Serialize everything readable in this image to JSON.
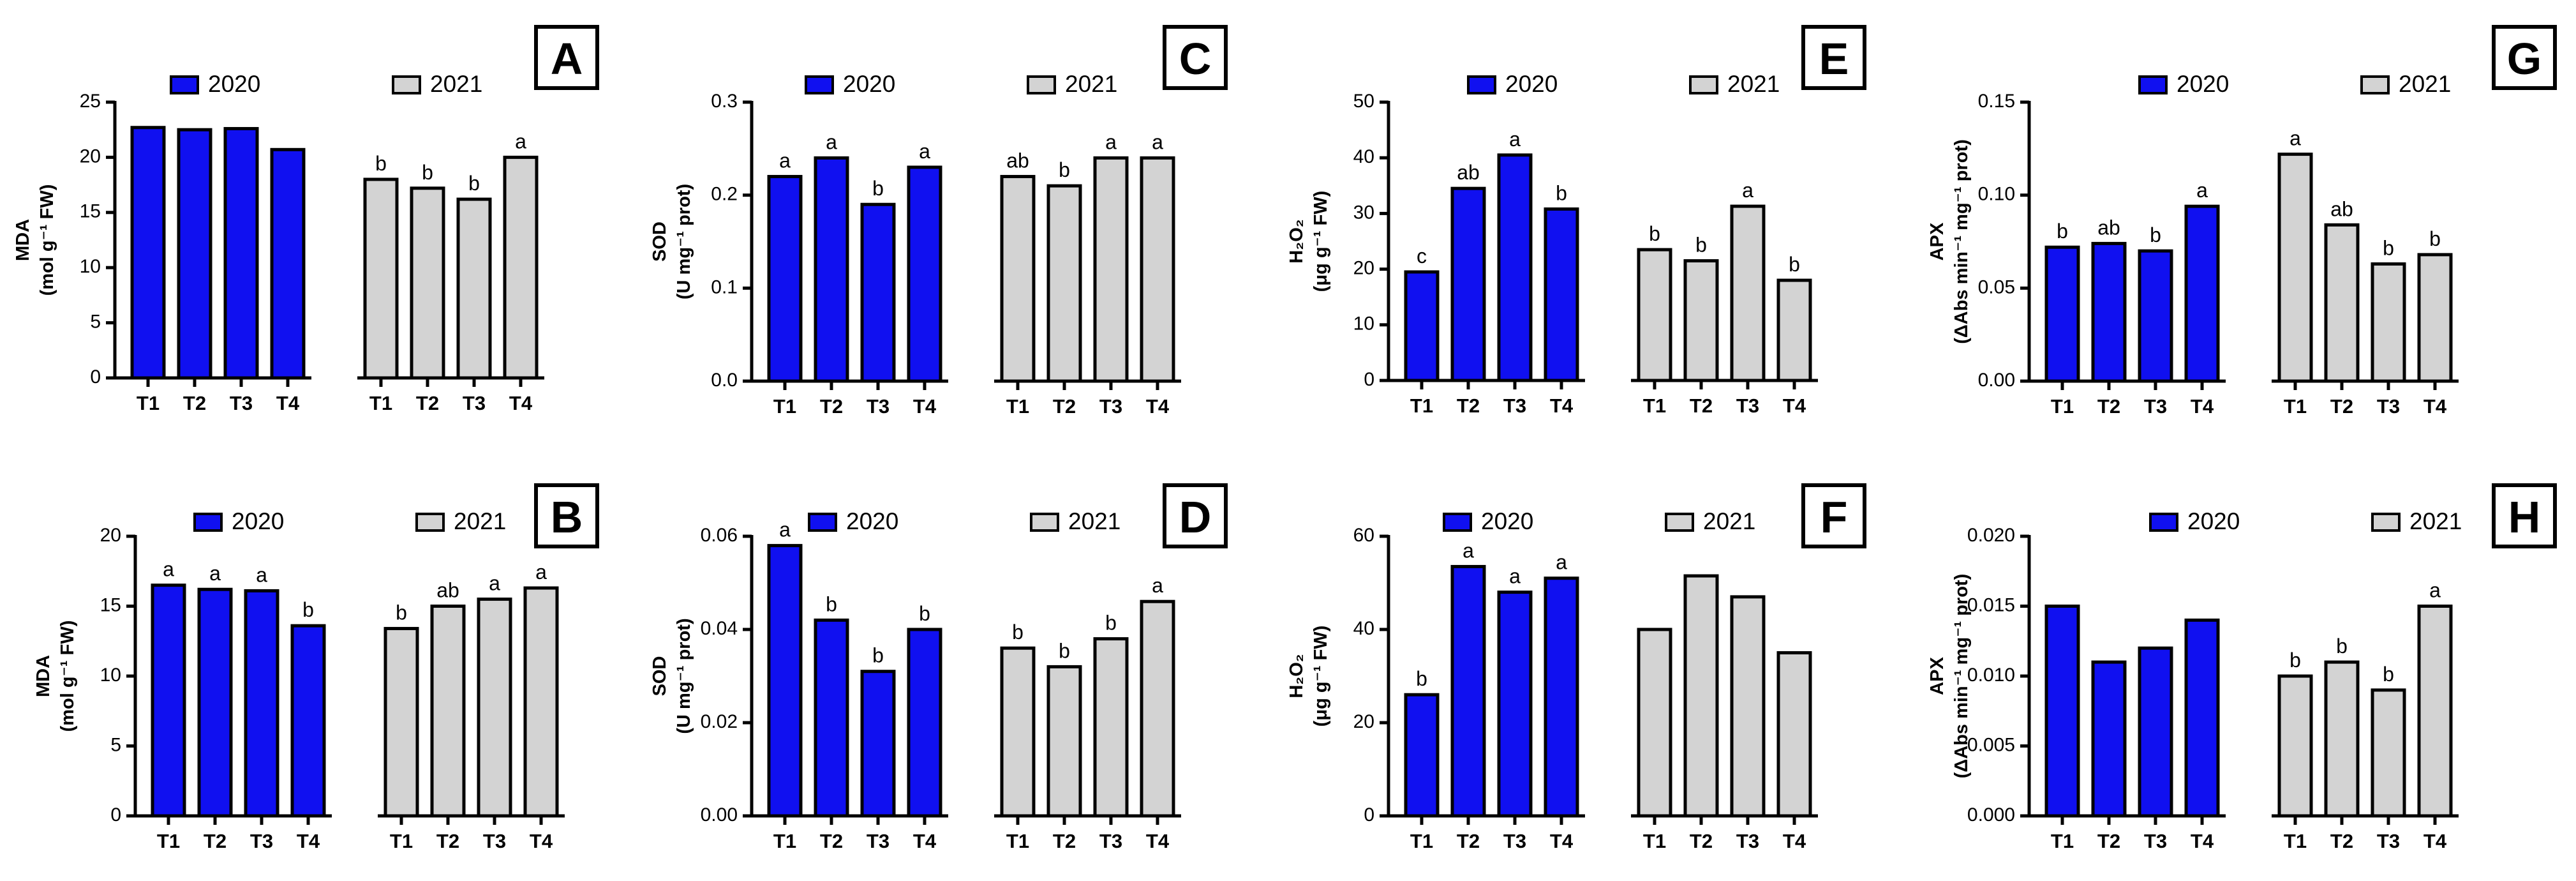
{
  "colors": {
    "y2020": "#1010f0",
    "y2021": "#d3d3d3"
  },
  "chart_data": [
    {
      "type": "bar",
      "panel": "A",
      "ylabel_lines": [
        "MDA",
        "(mol g⁻¹ FW)"
      ],
      "ylim": [
        0,
        25
      ],
      "yticks": [
        "0",
        "5",
        "10",
        "15",
        "20",
        "25"
      ],
      "categories": [
        "T1",
        "T2",
        "T3",
        "T4"
      ],
      "series": [
        {
          "name": "2020",
          "values": [
            22.7,
            22.5,
            22.6,
            20.7
          ],
          "letters": [
            "",
            "",
            "",
            ""
          ]
        },
        {
          "name": "2021",
          "values": [
            18.0,
            17.2,
            16.2,
            20.0
          ],
          "letters": [
            "b",
            "b",
            "b",
            "a"
          ]
        }
      ]
    },
    {
      "type": "bar",
      "panel": "C",
      "ylabel_lines": [
        "SOD",
        "(U mg⁻¹ prot)"
      ],
      "ylim": [
        0,
        0.3
      ],
      "yticks": [
        "0.0",
        "0.1",
        "0.2",
        "0.3"
      ],
      "categories": [
        "T1",
        "T2",
        "T3",
        "T4"
      ],
      "series": [
        {
          "name": "2020",
          "values": [
            0.22,
            0.24,
            0.19,
            0.23
          ],
          "letters": [
            "a",
            "a",
            "b",
            "a"
          ]
        },
        {
          "name": "2021",
          "values": [
            0.22,
            0.21,
            0.24,
            0.24
          ],
          "letters": [
            "ab",
            "b",
            "a",
            "a"
          ]
        }
      ]
    },
    {
      "type": "bar",
      "panel": "E",
      "ylabel_lines": [
        "H₂O₂",
        "(μg g⁻¹ FW)"
      ],
      "ylim": [
        0,
        50
      ],
      "yticks": [
        "0",
        "10",
        "20",
        "30",
        "40",
        "50"
      ],
      "categories": [
        "T1",
        "T2",
        "T3",
        "T4"
      ],
      "series": [
        {
          "name": "2020",
          "values": [
            19.5,
            34.5,
            40.5,
            30.8
          ],
          "letters": [
            "c",
            "ab",
            "a",
            "b"
          ]
        },
        {
          "name": "2021",
          "values": [
            23.5,
            21.5,
            31.3,
            18.0
          ],
          "letters": [
            "b",
            "b",
            "a",
            "b"
          ]
        }
      ]
    },
    {
      "type": "bar",
      "panel": "G",
      "ylabel_lines": [
        "APX",
        "(ΔAbs min⁻¹ mg⁻¹ prot)"
      ],
      "ylim": [
        0,
        0.15
      ],
      "yticks": [
        "0.00",
        "0.05",
        "0.10",
        "0.15"
      ],
      "categories": [
        "T1",
        "T2",
        "T3",
        "T4"
      ],
      "series": [
        {
          "name": "2020",
          "values": [
            0.072,
            0.074,
            0.07,
            0.094
          ],
          "letters": [
            "b",
            "ab",
            "b",
            "a"
          ]
        },
        {
          "name": "2021",
          "values": [
            0.122,
            0.084,
            0.063,
            0.068
          ],
          "letters": [
            "a",
            "ab",
            "b",
            "b"
          ]
        }
      ]
    },
    {
      "type": "bar",
      "panel": "B",
      "ylabel_lines": [
        "MDA",
        "(mol g⁻¹ FW)"
      ],
      "ylim": [
        0,
        20
      ],
      "yticks": [
        "0",
        "5",
        "10",
        "15",
        "20"
      ],
      "categories": [
        "T1",
        "T2",
        "T3",
        "T4"
      ],
      "series": [
        {
          "name": "2020",
          "values": [
            16.5,
            16.2,
            16.1,
            13.6
          ],
          "letters": [
            "a",
            "a",
            "a",
            "b"
          ]
        },
        {
          "name": "2021",
          "values": [
            13.4,
            15.0,
            15.5,
            16.3
          ],
          "letters": [
            "b",
            "ab",
            "a",
            "a"
          ]
        }
      ]
    },
    {
      "type": "bar",
      "panel": "D",
      "ylabel_lines": [
        "SOD",
        "(U mg⁻¹ prot)"
      ],
      "ylim": [
        0,
        0.06
      ],
      "yticks": [
        "0.00",
        "0.02",
        "0.04",
        "0.06"
      ],
      "categories": [
        "T1",
        "T2",
        "T3",
        "T4"
      ],
      "series": [
        {
          "name": "2020",
          "values": [
            0.058,
            0.042,
            0.031,
            0.04
          ],
          "letters": [
            "a",
            "b",
            "b",
            "b"
          ]
        },
        {
          "name": "2021",
          "values": [
            0.036,
            0.032,
            0.038,
            0.046
          ],
          "letters": [
            "b",
            "b",
            "b",
            "a"
          ]
        }
      ]
    },
    {
      "type": "bar",
      "panel": "F",
      "ylabel_lines": [
        "H₂O₂",
        "(μg g⁻¹ FW)"
      ],
      "ylim": [
        0,
        60
      ],
      "yticks": [
        "0",
        "20",
        "40",
        "60"
      ],
      "categories": [
        "T1",
        "T2",
        "T3",
        "T4"
      ],
      "series": [
        {
          "name": "2020",
          "values": [
            26,
            53.5,
            48,
            51
          ],
          "letters": [
            "b",
            "a",
            "a",
            "a"
          ]
        },
        {
          "name": "2021",
          "values": [
            40,
            51.5,
            47,
            35
          ],
          "letters": [
            "",
            "",
            "",
            ""
          ]
        }
      ]
    },
    {
      "type": "bar",
      "panel": "H",
      "ylabel_lines": [
        "APX",
        "(ΔAbs min⁻¹ mg⁻¹ prot)"
      ],
      "ylim": [
        0,
        0.02
      ],
      "yticks": [
        "0.000",
        "0.005",
        "0.010",
        "0.015",
        "0.020"
      ],
      "categories": [
        "T1",
        "T2",
        "T3",
        "T4"
      ],
      "series": [
        {
          "name": "2020",
          "values": [
            0.015,
            0.011,
            0.012,
            0.014
          ],
          "letters": [
            "",
            "",
            "",
            ""
          ]
        },
        {
          "name": "2021",
          "values": [
            0.01,
            0.011,
            0.009,
            0.015
          ],
          "letters": [
            "b",
            "b",
            "b",
            "a"
          ]
        }
      ]
    }
  ]
}
